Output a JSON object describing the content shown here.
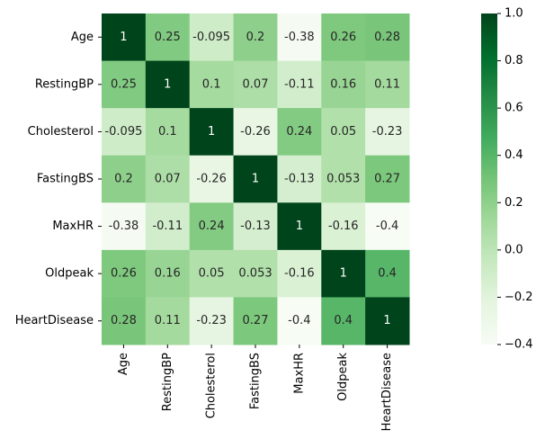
{
  "chart_data": {
    "type": "heatmap",
    "title": "",
    "xlabel": "",
    "ylabel": "",
    "rows": [
      "Age",
      "RestingBP",
      "Cholesterol",
      "FastingBS",
      "MaxHR",
      "Oldpeak",
      "HeartDisease"
    ],
    "columns": [
      "Age",
      "RestingBP",
      "Cholesterol",
      "FastingBS",
      "MaxHR",
      "Oldpeak",
      "HeartDisease"
    ],
    "values": [
      [
        1,
        0.25,
        -0.095,
        0.2,
        -0.38,
        0.26,
        0.28
      ],
      [
        0.25,
        1,
        0.1,
        0.07,
        -0.11,
        0.16,
        0.11
      ],
      [
        -0.095,
        0.1,
        1,
        -0.26,
        0.24,
        0.05,
        -0.23
      ],
      [
        0.2,
        0.07,
        -0.26,
        1,
        -0.13,
        0.053,
        0.27
      ],
      [
        -0.38,
        -0.11,
        0.24,
        -0.13,
        1,
        -0.16,
        -0.4
      ],
      [
        0.26,
        0.16,
        0.05,
        0.053,
        -0.16,
        1,
        0.4
      ],
      [
        0.28,
        0.11,
        -0.23,
        0.27,
        -0.4,
        0.4,
        1
      ]
    ],
    "annotations": [
      [
        "1",
        "0.25",
        "-0.095",
        "0.2",
        "-0.38",
        "0.26",
        "0.28"
      ],
      [
        "0.25",
        "1",
        "0.1",
        "0.07",
        "-0.11",
        "0.16",
        "0.11"
      ],
      [
        "-0.095",
        "0.1",
        "1",
        "-0.26",
        "0.24",
        "0.05",
        "-0.23"
      ],
      [
        "0.2",
        "0.07",
        "-0.26",
        "1",
        "-0.13",
        "0.053",
        "0.27"
      ],
      [
        "-0.38",
        "-0.11",
        "0.24",
        "-0.13",
        "1",
        "-0.16",
        "-0.4"
      ],
      [
        "0.26",
        "0.16",
        "0.05",
        "0.053",
        "-0.16",
        "1",
        "0.4"
      ],
      [
        "0.28",
        "0.11",
        "-0.23",
        "0.27",
        "-0.4",
        "0.4",
        "1"
      ]
    ],
    "colorbar": {
      "range": [
        -0.4,
        1.0
      ],
      "ticks": [
        "1.0",
        "0.8",
        "0.6",
        "0.4",
        "0.2",
        "0.0",
        "−0.2",
        "−0.4"
      ],
      "tick_values": [
        1.0,
        0.8,
        0.6,
        0.4,
        0.2,
        0.0,
        -0.2,
        -0.4
      ],
      "placement": "right"
    },
    "colormap": "Greens",
    "colormap_stops": [
      "#f7fcf5",
      "#e5f5e0",
      "#c7e9c0",
      "#a1d99b",
      "#74c476",
      "#41ab5d",
      "#238b45",
      "#006d2c",
      "#00441b"
    ],
    "annotation_light_color": "#262626",
    "annotation_dark_color": "#ffffff"
  }
}
